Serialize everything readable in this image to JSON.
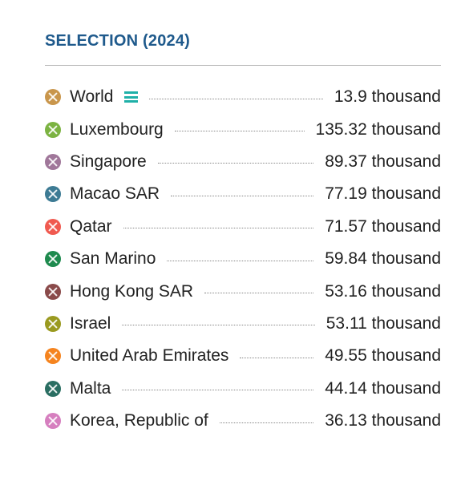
{
  "header": {
    "title": "SELECTION (2024)"
  },
  "rows": [
    {
      "name": "World",
      "value": "13.9 thousand",
      "color": "#c9964c",
      "menu_icon": "hamburger-menu-icon"
    },
    {
      "name": "Luxembourg",
      "value": "135.32 thousand",
      "color": "#7cb342"
    },
    {
      "name": "Singapore",
      "value": "89.37 thousand",
      "color": "#a0779a"
    },
    {
      "name": "Macao SAR",
      "value": "77.19 thousand",
      "color": "#3d7b94"
    },
    {
      "name": "Qatar",
      "value": "71.57 thousand",
      "color": "#f05a50"
    },
    {
      "name": "San Marino",
      "value": "59.84 thousand",
      "color": "#1e8a4e"
    },
    {
      "name": "Hong Kong SAR",
      "value": "53.16 thousand",
      "color": "#8a4a4a"
    },
    {
      "name": "Israel",
      "value": "53.11 thousand",
      "color": "#9a9a20"
    },
    {
      "name": "United Arab Emirates",
      "value": "49.55 thousand",
      "color": "#f5841f"
    },
    {
      "name": "Malta",
      "value": "44.14 thousand",
      "color": "#2a6e62"
    },
    {
      "name": "Korea, Republic of",
      "value": "36.13 thousand",
      "color": "#d67fbf"
    }
  ]
}
